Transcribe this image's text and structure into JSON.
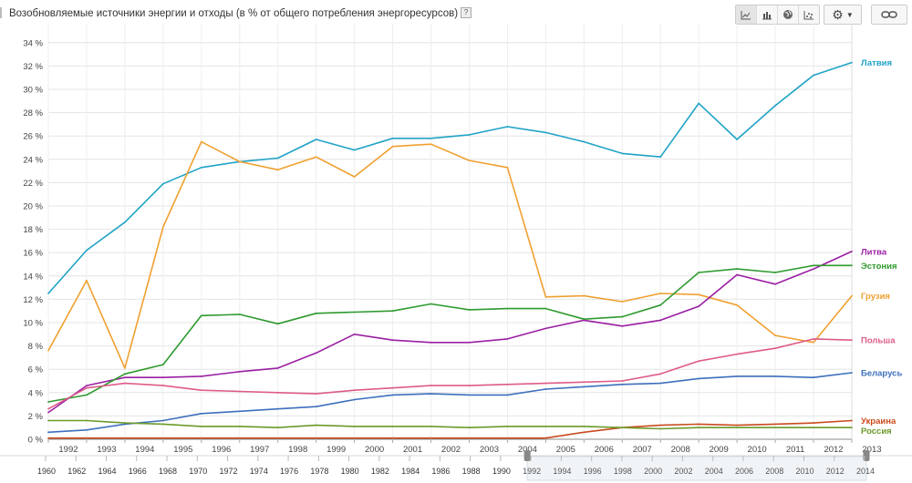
{
  "header": {
    "title": "Возобновляемые источники энергии и отходы (в % от общего потребления энергоресурсов)",
    "help": "?"
  },
  "toolbar": {
    "views": [
      {
        "name": "line-chart-view-button",
        "icon": "line-chart-icon",
        "active": true
      },
      {
        "name": "bar-chart-view-button",
        "icon": "bar-chart-icon",
        "active": false
      },
      {
        "name": "map-view-button",
        "icon": "globe-icon",
        "active": false
      },
      {
        "name": "scatter-view-button",
        "icon": "scatter-chart-icon",
        "active": false
      }
    ],
    "settings_icon": "gear-icon",
    "link_icon": "link-icon"
  },
  "chart_data": {
    "type": "line",
    "title": "Возобновляемые источники энергии и отходы (в % от общего потребления энергоресурсов)",
    "x": [
      1992,
      1993,
      1994,
      1995,
      1996,
      1997,
      1998,
      1999,
      2000,
      2001,
      2002,
      2003,
      2004,
      2005,
      2006,
      2007,
      2008,
      2009,
      2010,
      2011,
      2012,
      2013
    ],
    "x_tick_labels": [
      "1992",
      "1993",
      "1994",
      "1995",
      "1996",
      "1997",
      "1998",
      "1999",
      "2000",
      "2001",
      "2002",
      "2003",
      "2004",
      "2005",
      "2006",
      "2007",
      "2008",
      "2009",
      "2010",
      "2011",
      "2012",
      "2013"
    ],
    "ylim": [
      0,
      35
    ],
    "y_tick_labels": [
      "0 %",
      "2 %",
      "4 %",
      "6 %",
      "8 %",
      "10 %",
      "12 %",
      "14 %",
      "16 %",
      "18 %",
      "20 %",
      "22 %",
      "24 %",
      "26 %",
      "28 %",
      "30 %",
      "32 %",
      "34 %"
    ],
    "grid": true,
    "legend_position": "right",
    "series": [
      {
        "name": "Латвия",
        "color": "#1fa3c7",
        "values": [
          12.5,
          16.2,
          18.6,
          21.9,
          23.3,
          23.8,
          24.1,
          25.7,
          24.8,
          25.8,
          25.8,
          26.1,
          26.8,
          26.3,
          25.5,
          24.5,
          24.2,
          28.8,
          25.7,
          28.6,
          31.2,
          32.3
        ]
      },
      {
        "name": "Грузия",
        "color": "#f0a030",
        "values": [
          7.6,
          13.6,
          6.1,
          18.2,
          25.5,
          23.8,
          23.1,
          24.2,
          22.5,
          25.1,
          25.3,
          23.9,
          23.3,
          12.2,
          12.3,
          11.8,
          12.5,
          12.4,
          11.5,
          8.9,
          8.3,
          12.3
        ]
      },
      {
        "name": "Литва",
        "color": "#9a1fa3",
        "values": [
          2.3,
          4.6,
          5.3,
          5.3,
          5.4,
          5.8,
          6.1,
          7.4,
          9.0,
          8.5,
          8.3,
          8.3,
          8.6,
          9.5,
          10.2,
          9.7,
          10.2,
          11.4,
          14.1,
          13.3,
          14.6,
          16.1
        ]
      },
      {
        "name": "Эстония",
        "color": "#2e9a2e",
        "values": [
          3.2,
          3.8,
          5.6,
          6.4,
          10.6,
          10.7,
          9.9,
          10.8,
          10.9,
          11.0,
          11.6,
          11.1,
          11.2,
          11.2,
          10.3,
          10.5,
          11.5,
          14.3,
          14.6,
          14.3,
          14.9,
          14.9
        ]
      },
      {
        "name": "Польша",
        "color": "#de5b8a",
        "values": [
          2.6,
          4.4,
          4.8,
          4.6,
          4.2,
          4.1,
          4.0,
          3.9,
          4.2,
          4.4,
          4.6,
          4.6,
          4.7,
          4.8,
          4.9,
          5.0,
          5.6,
          6.7,
          7.3,
          7.8,
          8.6,
          8.5
        ]
      },
      {
        "name": "Беларусь",
        "color": "#3d6fbd",
        "values": [
          0.6,
          0.8,
          1.3,
          1.6,
          2.2,
          2.4,
          2.6,
          2.8,
          3.4,
          3.8,
          3.9,
          3.8,
          3.8,
          4.3,
          4.5,
          4.7,
          4.8,
          5.2,
          5.4,
          5.4,
          5.3,
          5.7
        ]
      },
      {
        "name": "Украина",
        "color": "#c84b1e",
        "values": [
          0.1,
          0.1,
          0.1,
          0.1,
          0.1,
          0.1,
          0.1,
          0.1,
          0.1,
          0.1,
          0.1,
          0.1,
          0.1,
          0.1,
          0.6,
          1.0,
          1.2,
          1.3,
          1.2,
          1.3,
          1.4,
          1.6
        ]
      },
      {
        "name": "Россия",
        "color": "#6b9a2a",
        "values": [
          1.6,
          1.6,
          1.4,
          1.3,
          1.1,
          1.1,
          1.0,
          1.2,
          1.1,
          1.1,
          1.1,
          1.0,
          1.1,
          1.1,
          1.1,
          1.0,
          0.9,
          1.0,
          1.0,
          1.0,
          1.0,
          1.0
        ]
      }
    ]
  },
  "timeline": {
    "ticks": [
      "1960",
      "1962",
      "1964",
      "1966",
      "1968",
      "1970",
      "1972",
      "1974",
      "1976",
      "1978",
      "1980",
      "1982",
      "1984",
      "1986",
      "1988",
      "1990",
      "1992",
      "1994",
      "1996",
      "1998",
      "2000",
      "2002",
      "2004",
      "2006",
      "2008",
      "2010",
      "2012",
      "2014"
    ],
    "selected_from": "1992",
    "selected_to": "2014"
  }
}
